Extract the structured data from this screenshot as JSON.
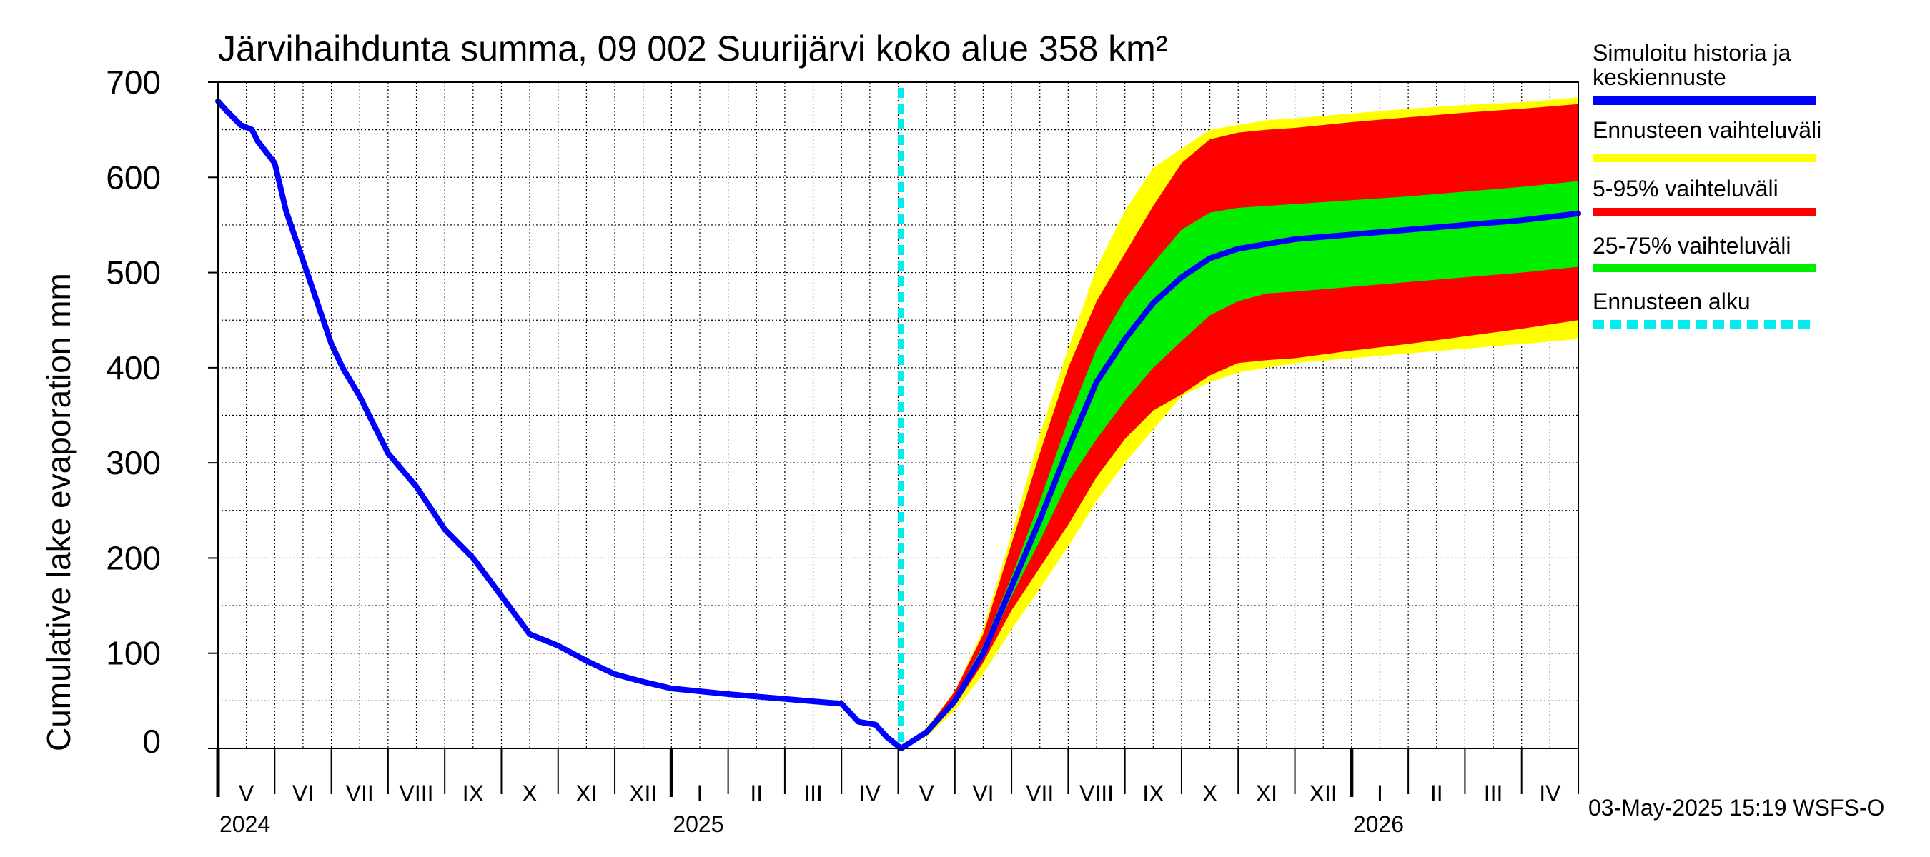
{
  "chart_data": {
    "type": "area",
    "title": "Järvihaihdunta summa, 09 002 Suurijärvi koko alue 358 km²",
    "ylabel": "Cumulative lake evaporation   mm",
    "xlabel": "",
    "ylim": [
      0,
      700
    ],
    "yticks": [
      0,
      100,
      200,
      300,
      400,
      500,
      600,
      700
    ],
    "grid": true,
    "x_unit": "month index from 2024-05-01",
    "xlim": [
      0,
      24
    ],
    "month_labels": [
      "V",
      "VI",
      "VII",
      "VIII",
      "IX",
      "X",
      "XI",
      "XII",
      "I",
      "II",
      "III",
      "IV",
      "V",
      "VI",
      "VII",
      "VIII",
      "IX",
      "X",
      "XI",
      "XII",
      "I",
      "II",
      "III",
      "IV"
    ],
    "year_labels": [
      {
        "label": "2024",
        "month": 0
      },
      {
        "label": "2025",
        "month": 8
      },
      {
        "label": "2026",
        "month": 20
      }
    ],
    "forecast_start": 12.05,
    "history": {
      "name": "Simuloitu historia ja keskiennuste",
      "x": [
        0,
        0.15,
        0.4,
        0.6,
        0.7,
        1.0,
        1.2,
        1.4,
        1.6,
        1.8,
        2.0,
        2.2,
        2.5,
        3.0,
        3.5,
        4.0,
        4.5,
        5.0,
        5.5,
        6.0,
        6.5,
        7.0,
        7.5,
        8.0,
        9.0,
        10.0,
        11.0,
        11.3,
        11.6,
        11.8,
        12.05
      ],
      "values": [
        680,
        670,
        655,
        650,
        638,
        615,
        565,
        530,
        495,
        460,
        425,
        400,
        370,
        310,
        275,
        230,
        200,
        160,
        120,
        108,
        92,
        78,
        70,
        63,
        57,
        52,
        47,
        28,
        25,
        12,
        0
      ]
    },
    "series": [
      {
        "name": "Ennusteen vaihteluväli",
        "color": "#ffff00",
        "x": [
          12.05,
          12.5,
          13.0,
          13.5,
          14.0,
          14.5,
          15.0,
          15.5,
          16.0,
          16.5,
          17.0,
          17.5,
          18.0,
          18.5,
          19.0,
          20.0,
          21.0,
          22.0,
          23.0,
          24.0
        ],
        "upper": [
          0,
          22,
          60,
          125,
          225,
          330,
          420,
          505,
          565,
          610,
          630,
          650,
          655,
          660,
          662,
          667,
          672,
          676,
          679,
          684
        ],
        "lower": [
          0,
          12,
          40,
          78,
          125,
          168,
          212,
          260,
          300,
          335,
          370,
          385,
          395,
          400,
          405,
          410,
          415,
          420,
          425,
          430
        ]
      },
      {
        "name": "5-95% vaihteluväli",
        "color": "#ff0000",
        "x": [
          12.05,
          12.5,
          13.0,
          13.5,
          14.0,
          14.5,
          15.0,
          15.5,
          16.0,
          16.5,
          17.0,
          17.5,
          18.0,
          18.5,
          19.0,
          20.0,
          21.0,
          22.0,
          23.0,
          24.0
        ],
        "upper": [
          0,
          20,
          60,
          120,
          215,
          310,
          400,
          470,
          520,
          570,
          615,
          640,
          647,
          650,
          652,
          658,
          663,
          668,
          672,
          677
        ],
        "lower": [
          0,
          15,
          45,
          90,
          145,
          190,
          235,
          285,
          325,
          355,
          372,
          392,
          405,
          408,
          410,
          418,
          425,
          433,
          441,
          450
        ]
      },
      {
        "name": "25-75% vaihteluväli",
        "color": "#00ee00",
        "x": [
          12.05,
          12.5,
          13.0,
          13.5,
          14.0,
          14.5,
          15.0,
          15.5,
          16.0,
          16.5,
          17.0,
          17.5,
          18.0,
          18.5,
          19.0,
          20.0,
          21.0,
          22.0,
          23.0,
          24.0
        ],
        "upper": [
          0,
          18,
          55,
          108,
          180,
          260,
          345,
          420,
          472,
          510,
          545,
          563,
          568,
          570,
          572,
          576,
          580,
          585,
          590,
          596
        ],
        "lower": [
          0,
          16,
          48,
          95,
          160,
          218,
          280,
          325,
          365,
          400,
          428,
          455,
          470,
          478,
          480,
          485,
          490,
          495,
          500,
          506
        ]
      }
    ],
    "median": {
      "name": "Simuloitu historia ja keskiennuste",
      "x": [
        12.05,
        12.5,
        13.0,
        13.5,
        14.0,
        14.5,
        15.0,
        15.5,
        16.0,
        16.5,
        17.0,
        17.5,
        18.0,
        18.5,
        19.0,
        20.0,
        21.0,
        22.0,
        23.0,
        24.0
      ],
      "values": [
        0,
        17,
        50,
        100,
        170,
        240,
        315,
        385,
        430,
        468,
        495,
        515,
        525,
        530,
        535,
        540,
        545,
        550,
        555,
        562
      ]
    },
    "legend": {
      "position": "right",
      "items": [
        {
          "label_lines": [
            "Simuloitu historia ja",
            "keskiennuste"
          ],
          "color": "#0000ff",
          "style": "solid"
        },
        {
          "label_lines": [
            "Ennusteen vaihteluväli"
          ],
          "color": "#ffff00",
          "style": "solid"
        },
        {
          "label_lines": [
            "5-95% vaihteluväli"
          ],
          "color": "#ff0000",
          "style": "solid"
        },
        {
          "label_lines": [
            "25-75% vaihteluväli"
          ],
          "color": "#00ee00",
          "style": "solid"
        },
        {
          "label_lines": [
            "Ennusteen alku"
          ],
          "color": "#00eeee",
          "style": "dashed"
        }
      ]
    },
    "footer": "03-May-2025 15:19 WSFS-O"
  }
}
